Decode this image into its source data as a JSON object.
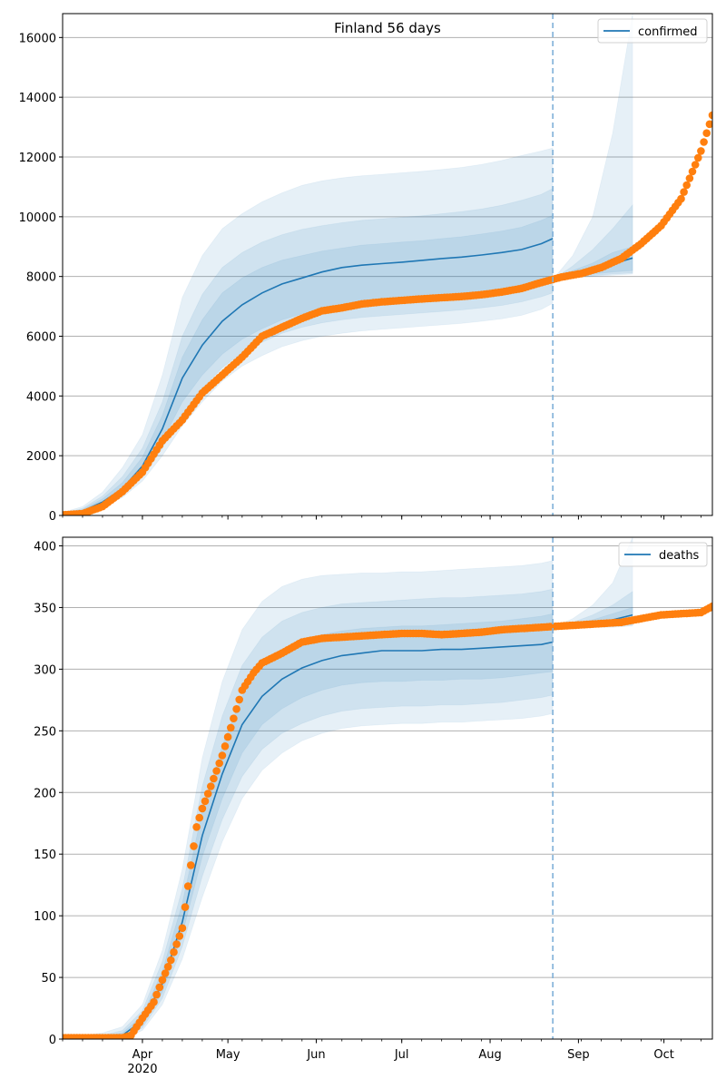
{
  "chart_data": [
    {
      "type": "line",
      "panel": "confirmed",
      "title": "Finland 56 days",
      "xlabel": "",
      "ylabel": "",
      "x_start_date": "2020-03-04",
      "x_end_date": "2020-10-18",
      "x_ticks": [
        {
          "label": "Apr",
          "sublabel": "2020",
          "day": 28
        },
        {
          "label": "May",
          "sublabel": "",
          "day": 58
        },
        {
          "label": "Jun",
          "sublabel": "",
          "day": 89
        },
        {
          "label": "Jul",
          "sublabel": "",
          "day": 119
        },
        {
          "label": "Aug",
          "sublabel": "",
          "day": 150
        },
        {
          "label": "Sep",
          "sublabel": "",
          "day": 181
        },
        {
          "label": "Oct",
          "sublabel": "",
          "day": 211
        }
      ],
      "ylim": [
        0,
        16800
      ],
      "y_ticks": [
        0,
        2000,
        4000,
        6000,
        8000,
        10000,
        12000,
        14000,
        16000
      ],
      "grid": "y",
      "legend": {
        "label": "confirmed",
        "placement": "top-right"
      },
      "fit_end_day": 172,
      "fit_end_date": "2020-08-23",
      "forecast_end_day": 200,
      "days": [
        0,
        7,
        14,
        21,
        28,
        35,
        42,
        49,
        56,
        63,
        70,
        77,
        84,
        91,
        98,
        105,
        112,
        119,
        126,
        133,
        140,
        147,
        154,
        161,
        168,
        172
      ],
      "model_median": [
        20,
        150,
        450,
        900,
        1650,
        2900,
        4600,
        5700,
        6500,
        7050,
        7450,
        7750,
        7950,
        8150,
        8300,
        8380,
        8430,
        8480,
        8540,
        8600,
        8650,
        8720,
        8800,
        8900,
        9100,
        9270
      ],
      "band_inner_low": [
        10,
        110,
        370,
        760,
        1450,
        2500,
        3800,
        4700,
        5400,
        5900,
        6250,
        6550,
        6750,
        6900,
        7000,
        7080,
        7130,
        7180,
        7230,
        7280,
        7330,
        7400,
        7480,
        7600,
        7780,
        7900
      ],
      "band_inner_high": [
        40,
        200,
        560,
        1100,
        1950,
        3350,
        5300,
        6550,
        7450,
        7950,
        8300,
        8550,
        8700,
        8850,
        8950,
        9050,
        9100,
        9150,
        9200,
        9270,
        9330,
        9420,
        9520,
        9650,
        9880,
        10050
      ],
      "band_mid_low": [
        5,
        90,
        330,
        680,
        1300,
        2250,
        3400,
        4250,
        4950,
        5450,
        5800,
        6100,
        6300,
        6450,
        6550,
        6630,
        6680,
        6730,
        6780,
        6830,
        6880,
        6950,
        7030,
        7150,
        7320,
        7450
      ],
      "band_mid_high": [
        60,
        240,
        650,
        1300,
        2250,
        3800,
        6000,
        7400,
        8300,
        8800,
        9150,
        9400,
        9580,
        9700,
        9800,
        9880,
        9930,
        9980,
        10030,
        10100,
        10170,
        10260,
        10380,
        10550,
        10750,
        10950
      ],
      "band_outer_low": [
        0,
        70,
        290,
        600,
        1150,
        2000,
        3000,
        3800,
        4500,
        5000,
        5350,
        5650,
        5850,
        6000,
        6100,
        6180,
        6230,
        6280,
        6330,
        6380,
        6430,
        6500,
        6580,
        6700,
        6900,
        7100
      ],
      "band_outer_high": [
        100,
        300,
        780,
        1600,
        2700,
        4700,
        7300,
        8700,
        9600,
        10100,
        10500,
        10800,
        11050,
        11200,
        11300,
        11370,
        11420,
        11470,
        11520,
        11580,
        11650,
        11750,
        11880,
        12050,
        12200,
        12300
      ],
      "forecast_days": [
        172,
        179,
        186,
        193,
        200
      ],
      "forecast_median": [
        7900,
        8080,
        8230,
        8420,
        8620
      ],
      "forecast_inner_low": [
        7900,
        8000,
        8080,
        8150,
        8200
      ],
      "forecast_inner_high": [
        7900,
        8200,
        8450,
        8800,
        9000
      ],
      "forecast_mid_low": [
        7900,
        7980,
        8030,
        8080,
        8120
      ],
      "forecast_mid_high": [
        7900,
        8350,
        8900,
        9600,
        10400
      ],
      "forecast_outer_low": [
        7900,
        7960,
        8000,
        8040,
        8080
      ],
      "forecast_outer_high": [
        7900,
        8700,
        10000,
        12800,
        16800
      ],
      "observed_days": [
        0,
        7,
        14,
        21,
        28,
        35,
        42,
        49,
        56,
        63,
        70,
        77,
        84,
        91,
        98,
        105,
        112,
        119,
        126,
        133,
        140,
        147,
        154,
        161,
        168,
        175,
        182,
        189,
        196,
        203,
        210,
        217,
        224,
        228
      ],
      "observed": [
        20,
        60,
        300,
        800,
        1450,
        2500,
        3200,
        4100,
        4700,
        5300,
        6000,
        6300,
        6600,
        6850,
        6950,
        7080,
        7150,
        7200,
        7250,
        7290,
        7330,
        7390,
        7480,
        7600,
        7800,
        7980,
        8100,
        8300,
        8600,
        9100,
        9700,
        10600,
        12200,
        13400
      ]
    },
    {
      "type": "line",
      "panel": "deaths",
      "title": "",
      "xlabel": "",
      "ylabel": "",
      "x_start_date": "2020-03-04",
      "x_end_date": "2020-10-18",
      "x_ticks": [
        {
          "label": "Apr",
          "sublabel": "2020",
          "day": 28
        },
        {
          "label": "May",
          "sublabel": "",
          "day": 58
        },
        {
          "label": "Jun",
          "sublabel": "",
          "day": 89
        },
        {
          "label": "Jul",
          "sublabel": "",
          "day": 119
        },
        {
          "label": "Aug",
          "sublabel": "",
          "day": 150
        },
        {
          "label": "Sep",
          "sublabel": "",
          "day": 181
        },
        {
          "label": "Oct",
          "sublabel": "",
          "day": 211
        }
      ],
      "ylim": [
        0,
        407
      ],
      "y_ticks": [
        0,
        50,
        100,
        150,
        200,
        250,
        300,
        350,
        400
      ],
      "grid": "y",
      "legend": {
        "label": "deaths",
        "placement": "top-right"
      },
      "fit_end_day": 172,
      "fit_end_date": "2020-08-23",
      "forecast_end_day": 200,
      "days": [
        0,
        7,
        14,
        21,
        28,
        35,
        42,
        49,
        56,
        63,
        70,
        77,
        84,
        91,
        98,
        105,
        112,
        119,
        126,
        133,
        140,
        147,
        154,
        161,
        168,
        172
      ],
      "model_median": [
        0,
        0,
        1,
        3,
        15,
        45,
        95,
        165,
        215,
        255,
        278,
        292,
        301,
        307,
        311,
        313,
        315,
        315,
        315,
        316,
        316,
        317,
        318,
        319,
        320,
        322
      ],
      "band_inner_low": [
        0,
        0,
        0,
        2,
        11,
        38,
        85,
        148,
        195,
        232,
        255,
        268,
        277,
        283,
        287,
        289,
        290,
        290,
        291,
        291,
        292,
        292,
        293,
        295,
        297,
        298
      ],
      "band_inner_high": [
        0,
        0,
        2,
        5,
        19,
        55,
        110,
        185,
        238,
        278,
        300,
        314,
        322,
        328,
        331,
        333,
        334,
        335,
        335,
        336,
        337,
        338,
        339,
        341,
        343,
        345
      ],
      "band_mid_low": [
        0,
        0,
        0,
        1,
        9,
        33,
        75,
        132,
        178,
        213,
        235,
        248,
        256,
        262,
        266,
        268,
        269,
        270,
        270,
        271,
        271,
        272,
        273,
        275,
        277,
        279
      ],
      "band_mid_high": [
        0,
        1,
        3,
        7,
        23,
        63,
        122,
        205,
        262,
        303,
        326,
        339,
        346,
        350,
        353,
        354,
        355,
        356,
        357,
        358,
        358,
        359,
        360,
        361,
        363,
        365
      ],
      "band_outer_low": [
        0,
        0,
        0,
        0,
        7,
        28,
        65,
        115,
        160,
        195,
        218,
        232,
        242,
        248,
        252,
        254,
        255,
        256,
        256,
        257,
        257,
        258,
        259,
        260,
        262,
        264
      ],
      "band_outer_high": [
        2,
        3,
        5,
        10,
        28,
        72,
        138,
        228,
        290,
        332,
        355,
        367,
        373,
        376,
        377,
        378,
        378,
        379,
        379,
        380,
        381,
        382,
        383,
        384,
        386,
        388
      ],
      "forecast_days": [
        172,
        179,
        186,
        193,
        200
      ],
      "forecast_median": [
        334,
        335,
        337,
        340,
        344
      ],
      "forecast_inner_low": [
        334,
        334,
        335,
        336,
        337
      ],
      "forecast_inner_high": [
        334,
        337,
        340,
        345,
        350
      ],
      "forecast_mid_low": [
        334,
        334,
        334,
        335,
        336
      ],
      "forecast_mid_high": [
        334,
        338,
        344,
        352,
        363
      ],
      "forecast_outer_low": [
        334,
        334,
        334,
        334,
        335
      ],
      "forecast_outer_high": [
        334,
        341,
        352,
        370,
        407
      ],
      "observed_days": [
        0,
        7,
        14,
        21,
        24,
        28,
        32,
        35,
        38,
        42,
        45,
        47,
        49,
        52,
        56,
        60,
        63,
        67,
        70,
        77,
        84,
        91,
        98,
        105,
        112,
        119,
        126,
        133,
        140,
        147,
        154,
        161,
        168,
        175,
        182,
        189,
        196,
        203,
        210,
        217,
        224,
        228
      ],
      "observed": [
        1,
        1,
        1,
        1,
        3,
        17,
        30,
        48,
        64,
        90,
        141,
        172,
        187,
        205,
        230,
        260,
        283,
        297,
        305,
        313,
        322,
        325,
        326,
        327,
        328,
        329,
        329,
        328,
        329,
        330,
        332,
        333,
        334,
        335,
        336,
        337,
        338,
        341,
        344,
        345,
        346,
        351
      ]
    }
  ],
  "colors": {
    "model": "#1f77b4",
    "observed": "#ff7f0e",
    "band": "#1f77b4",
    "grid": "#b0b0b0",
    "vline": "#7fb0d8"
  }
}
